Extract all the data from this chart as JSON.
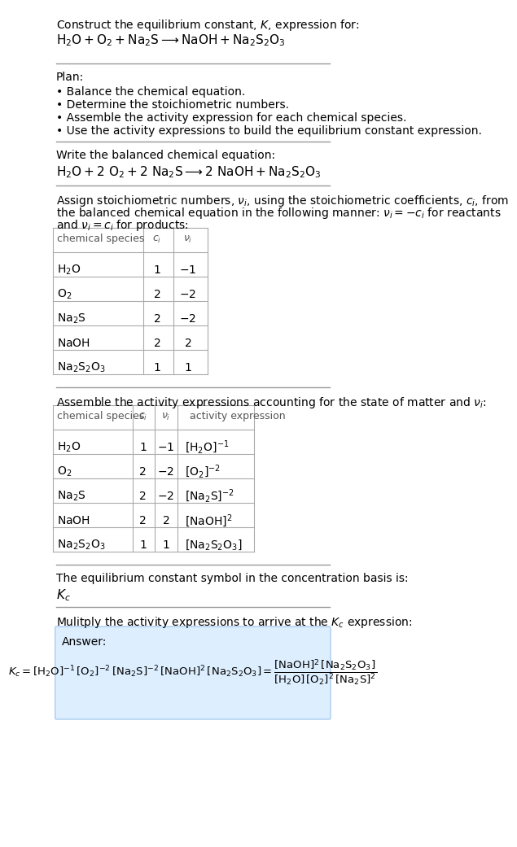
{
  "title_line1": "Construct the equilibrium constant, $K$, expression for:",
  "title_line2": "$\\text{H}_2\\text{O} + \\text{O}_2 + \\text{Na}_2\\text{S} \\longrightarrow \\text{NaOH} + \\text{Na}_2\\text{S}_2\\text{O}_3$",
  "plan_header": "Plan:",
  "plan_items": [
    "\\bullet\\ Balance the chemical equation.",
    "\\bullet\\ Determine the stoichiometric numbers.",
    "\\bullet\\ Assemble the activity expression for each chemical species.",
    "\\bullet\\ Use the activity expressions to build the equilibrium constant expression."
  ],
  "balanced_header": "Write the balanced chemical equation:",
  "balanced_eq": "$\\text{H}_2\\text{O} + 2\\ \\text{O}_2 + 2\\ \\text{Na}_2\\text{S} \\longrightarrow 2\\ \\text{NaOH} + \\text{Na}_2\\text{S}_2\\text{O}_3$",
  "stoich_header": "Assign stoichiometric numbers, $\\nu_i$, using the stoichiometric coefficients, $c_i$, from\nthe balanced chemical equation in the following manner: $\\nu_i = -c_i$ for reactants\nand $\\nu_i = c_i$ for products:",
  "table1_headers": [
    "chemical species",
    "$c_i$",
    "$\\nu_i$"
  ],
  "table1_rows": [
    [
      "$\\text{H}_2\\text{O}$",
      "1",
      "$-1$"
    ],
    [
      "$\\text{O}_2$",
      "2",
      "$-2$"
    ],
    [
      "$\\text{Na}_2\\text{S}$",
      "2",
      "$-2$"
    ],
    [
      "$\\text{NaOH}$",
      "2",
      "$2$"
    ],
    [
      "$\\text{Na}_2\\text{S}_2\\text{O}_3$",
      "1",
      "$1$"
    ]
  ],
  "activity_header": "Assemble the activity expressions accounting for the state of matter and $\\nu_i$:",
  "table2_headers": [
    "chemical species",
    "$c_i$",
    "$\\nu_i$",
    "activity expression"
  ],
  "table2_rows": [
    [
      "$\\text{H}_2\\text{O}$",
      "1",
      "$-1$",
      "$[\\text{H}_2\\text{O}]^{-1}$"
    ],
    [
      "$\\text{O}_2$",
      "2",
      "$-2$",
      "$[\\text{O}_2]^{-2}$"
    ],
    [
      "$\\text{Na}_2\\text{S}$",
      "2",
      "$-2$",
      "$[\\text{Na}_2\\text{S}]^{-2}$"
    ],
    [
      "$\\text{NaOH}$",
      "2",
      "$2$",
      "$[\\text{NaOH}]^2$"
    ],
    [
      "$\\text{Na}_2\\text{S}_2\\text{O}_3$",
      "1",
      "$1$",
      "$[\\text{Na}_2\\text{S}_2\\text{O}_3]$"
    ]
  ],
  "kc_header": "The equilibrium constant symbol in the concentration basis is:",
  "kc_symbol": "$K_c$",
  "multiply_header": "Mulitply the activity expressions to arrive at the $K_c$ expression:",
  "answer_line1": "$K_c = [\\text{H}_2\\text{O}]^{-1}\\,[\\text{O}_2]^{-2}\\,[\\text{Na}_2\\text{S}]^{-2}\\,[\\text{NaOH}]^2\\,[\\text{Na}_2\\text{S}_2\\text{O}_3] = \\dfrac{[\\text{NaOH}]^2\\,[\\text{Na}_2\\text{S}_2\\text{O}_3]}{[\\text{H}_2\\text{O}]\\,[\\text{O}_2]^2\\,[\\text{Na}_2\\text{S}]^2}$",
  "bg_color": "#ffffff",
  "text_color": "#000000",
  "table_border_color": "#aaaaaa",
  "answer_box_color": "#ddeeff",
  "font_size": 10,
  "small_font_size": 9
}
